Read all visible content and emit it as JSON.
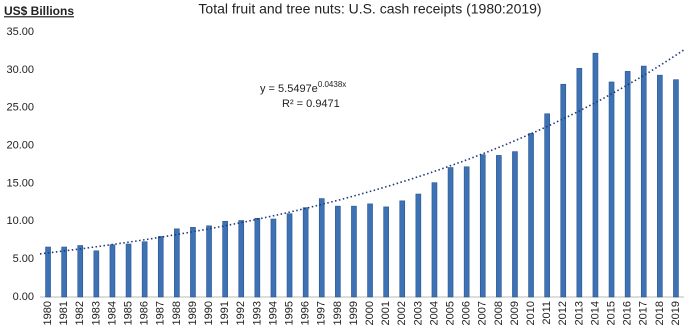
{
  "chart_data": {
    "type": "bar",
    "title": "Total fruit and tree nuts: U.S. cash receipts (1980:2019)",
    "y_axis_label": "US$ Billions",
    "categories": [
      "1980",
      "1981",
      "1982",
      "1983",
      "1984",
      "1985",
      "1986",
      "1987",
      "1988",
      "1989",
      "1990",
      "1991",
      "1992",
      "1993",
      "1994",
      "1995",
      "1996",
      "1997",
      "1998",
      "1999",
      "2000",
      "2001",
      "2002",
      "2003",
      "2004",
      "2005",
      "2006",
      "2007",
      "2008",
      "2009",
      "2010",
      "2011",
      "2012",
      "2013",
      "2014",
      "2015",
      "2016",
      "2017",
      "2018",
      "2019"
    ],
    "values": [
      6.6,
      6.6,
      6.8,
      6.1,
      6.9,
      7.0,
      7.3,
      8.0,
      9.0,
      9.2,
      9.4,
      10.0,
      10.1,
      10.4,
      10.3,
      11.0,
      11.8,
      13.0,
      12.0,
      12.0,
      12.3,
      11.9,
      12.7,
      13.6,
      15.1,
      17.1,
      17.2,
      18.8,
      18.7,
      19.2,
      21.6,
      24.2,
      28.1,
      30.2,
      32.2,
      28.4,
      29.8,
      30.5,
      29.3,
      28.7
    ],
    "color": "#3d72b4",
    "trendline": "exponential",
    "trendline_color": "#1f3a78",
    "annotations": {
      "equation": "y = 5.5497e",
      "equation_exponent": "0.0438x",
      "r_squared": "R² = 0.9471"
    },
    "ylim": [
      0,
      35
    ],
    "yticks": [
      {
        "value": 0,
        "label": "0.00"
      },
      {
        "value": 5,
        "label": "5.00"
      },
      {
        "value": 10,
        "label": "10.00"
      },
      {
        "value": 15,
        "label": "15.00"
      },
      {
        "value": 20,
        "label": "20.00"
      },
      {
        "value": 25,
        "label": "25.00"
      },
      {
        "value": 30,
        "label": "30.00"
      },
      {
        "value": 35,
        "label": "35.00"
      }
    ],
    "grid": false
  }
}
